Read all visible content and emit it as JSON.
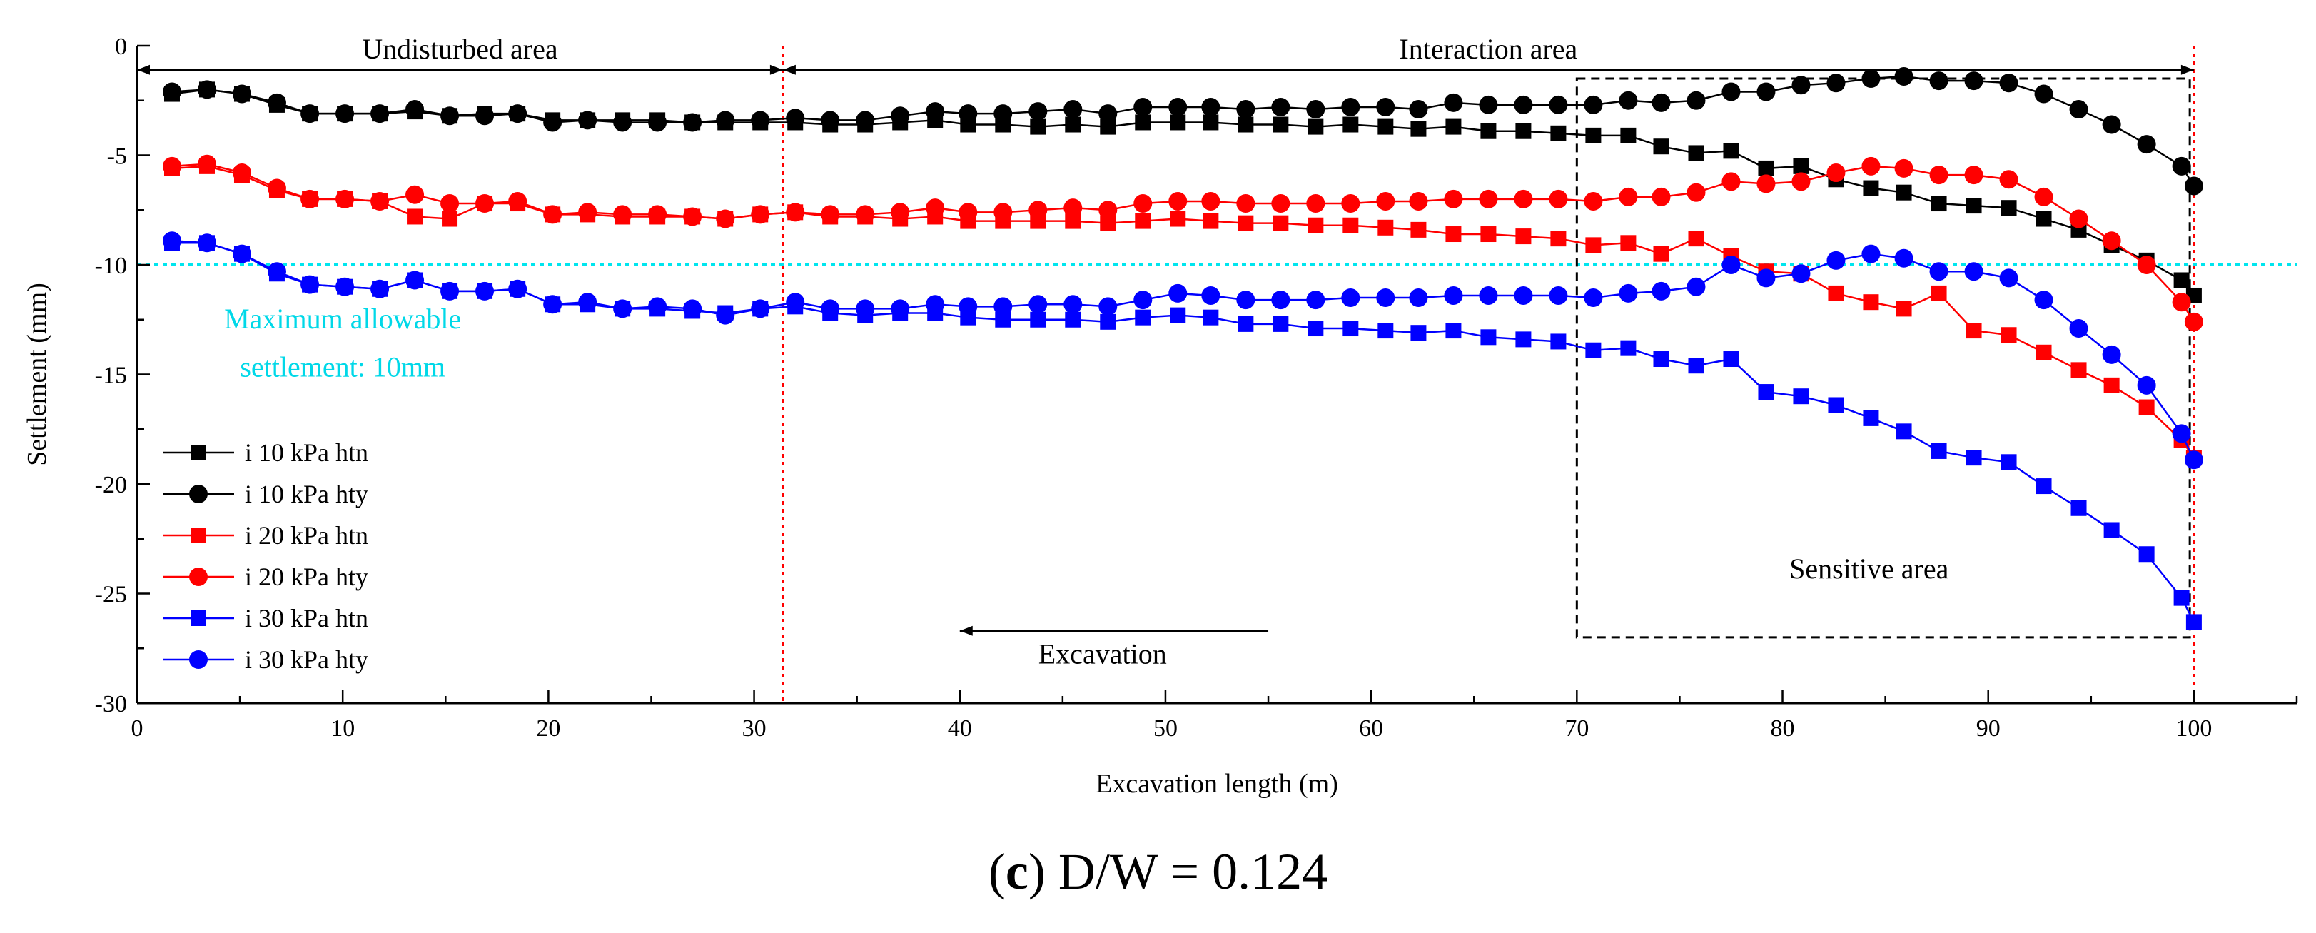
{
  "caption": {
    "open": "(",
    "letter": "c",
    "close": ")",
    "text": " D/W = 0.124"
  },
  "chart_data": {
    "type": "line",
    "xlabel": "Excavation length (m)",
    "ylabel": "Settlement  (mm)",
    "xlim": [
      0,
      105
    ],
    "ylim": [
      -30,
      0
    ],
    "xticks": [
      0,
      10,
      20,
      30,
      40,
      50,
      60,
      70,
      80,
      90,
      100
    ],
    "yticks": [
      0,
      -5,
      -10,
      -15,
      -20,
      -25,
      -30
    ],
    "grid": false,
    "legend_position": "lower-left",
    "threshold": {
      "y": -10,
      "color": "#00e5ee",
      "label_line1": "Maximum allowable",
      "label_line2": "settlement: 10mm"
    },
    "vlines": [
      {
        "x": 31.4,
        "color": "#ff0000"
      },
      {
        "x": 100,
        "color": "#ff0000"
      }
    ],
    "annotations": {
      "undisturbed": {
        "label": "Undisturbed area",
        "x_from": 0,
        "x_to": 31.4,
        "y": -1.1
      },
      "interaction": {
        "label": "Interaction area",
        "x_from": 31.4,
        "x_to": 100,
        "y": -1.1
      },
      "sensitive": {
        "label": "Sensitive area",
        "x_from": 70,
        "x_to": 99.8,
        "y_from": -1.5,
        "y_to": -27
      },
      "excavation": {
        "label": "Excavation",
        "x_from": 55,
        "x_to": 40,
        "y": -26.7
      }
    },
    "x": [
      1.7,
      3.4,
      5.1,
      6.8,
      8.4,
      10.1,
      11.8,
      13.5,
      15.2,
      16.9,
      18.5,
      20.2,
      21.9,
      23.6,
      25.3,
      27.0,
      28.6,
      30.3,
      32.0,
      33.7,
      35.4,
      37.1,
      38.8,
      40.4,
      42.1,
      43.8,
      45.5,
      47.2,
      48.9,
      50.6,
      52.2,
      53.9,
      55.6,
      57.3,
      59.0,
      60.7,
      62.3,
      64.0,
      65.7,
      67.4,
      69.1,
      70.8,
      72.5,
      74.1,
      75.8,
      77.5,
      79.2,
      80.9,
      82.6,
      84.3,
      85.9,
      87.6,
      89.3,
      91.0,
      92.7,
      94.4,
      96.0,
      97.7,
      99.4,
      100.0
    ],
    "series": [
      {
        "name": "i 10 kPa htn",
        "color": "#000000",
        "marker": "square",
        "values": [
          -2.2,
          -2.0,
          -2.2,
          -2.7,
          -3.1,
          -3.1,
          -3.1,
          -3.0,
          -3.2,
          -3.1,
          -3.1,
          -3.4,
          -3.4,
          -3.4,
          -3.4,
          -3.5,
          -3.5,
          -3.5,
          -3.5,
          -3.6,
          -3.6,
          -3.5,
          -3.4,
          -3.6,
          -3.6,
          -3.7,
          -3.6,
          -3.7,
          -3.5,
          -3.5,
          -3.5,
          -3.6,
          -3.6,
          -3.7,
          -3.6,
          -3.7,
          -3.8,
          -3.7,
          -3.9,
          -3.9,
          -4.0,
          -4.1,
          -4.1,
          -4.6,
          -4.9,
          -4.8,
          -5.6,
          -5.5,
          -6.1,
          -6.5,
          -6.7,
          -7.2,
          -7.3,
          -7.4,
          -7.9,
          -8.4,
          -9.1,
          -9.8,
          -10.7,
          -11.4
        ]
      },
      {
        "name": "i 10 kPa hty",
        "color": "#000000",
        "marker": "circle",
        "values": [
          -2.1,
          -2.0,
          -2.2,
          -2.6,
          -3.1,
          -3.1,
          -3.1,
          -2.9,
          -3.2,
          -3.2,
          -3.1,
          -3.5,
          -3.4,
          -3.5,
          -3.5,
          -3.5,
          -3.4,
          -3.4,
          -3.3,
          -3.4,
          -3.4,
          -3.2,
          -3.0,
          -3.1,
          -3.1,
          -3.0,
          -2.9,
          -3.1,
          -2.8,
          -2.8,
          -2.8,
          -2.9,
          -2.8,
          -2.9,
          -2.8,
          -2.8,
          -2.9,
          -2.6,
          -2.7,
          -2.7,
          -2.7,
          -2.7,
          -2.5,
          -2.6,
          -2.5,
          -2.1,
          -2.1,
          -1.8,
          -1.7,
          -1.5,
          -1.4,
          -1.6,
          -1.6,
          -1.7,
          -2.2,
          -2.9,
          -3.6,
          -4.5,
          -5.5,
          -6.4
        ]
      },
      {
        "name": "i 20 kPa htn",
        "color": "#ff0000",
        "marker": "square",
        "values": [
          -5.6,
          -5.5,
          -5.9,
          -6.6,
          -7.0,
          -7.0,
          -7.1,
          -7.8,
          -7.9,
          -7.2,
          -7.2,
          -7.7,
          -7.7,
          -7.8,
          -7.8,
          -7.8,
          -7.9,
          -7.7,
          -7.6,
          -7.8,
          -7.8,
          -7.9,
          -7.8,
          -8.0,
          -8.0,
          -8.0,
          -8.0,
          -8.1,
          -8.0,
          -7.9,
          -8.0,
          -8.1,
          -8.1,
          -8.2,
          -8.2,
          -8.3,
          -8.4,
          -8.6,
          -8.6,
          -8.7,
          -8.8,
          -9.1,
          -9.0,
          -9.5,
          -8.8,
          -9.6,
          -10.3,
          -10.4,
          -11.3,
          -11.7,
          -12.0,
          -11.3,
          -13.0,
          -13.2,
          -14.0,
          -14.8,
          -15.5,
          -16.5,
          -18.0,
          -18.8
        ]
      },
      {
        "name": "i 20 kPa hty",
        "color": "#ff0000",
        "marker": "circle",
        "values": [
          -5.5,
          -5.4,
          -5.8,
          -6.5,
          -7.0,
          -7.0,
          -7.1,
          -6.8,
          -7.2,
          -7.2,
          -7.1,
          -7.7,
          -7.6,
          -7.7,
          -7.7,
          -7.8,
          -7.9,
          -7.7,
          -7.6,
          -7.7,
          -7.7,
          -7.6,
          -7.4,
          -7.6,
          -7.6,
          -7.5,
          -7.4,
          -7.5,
          -7.2,
          -7.1,
          -7.1,
          -7.2,
          -7.2,
          -7.2,
          -7.2,
          -7.1,
          -7.1,
          -7.0,
          -7.0,
          -7.0,
          -7.0,
          -7.1,
          -6.9,
          -6.9,
          -6.7,
          -6.2,
          -6.3,
          -6.2,
          -5.8,
          -5.5,
          -5.6,
          -5.9,
          -5.9,
          -6.1,
          -6.9,
          -7.9,
          -8.9,
          -10.0,
          -11.7,
          -12.6
        ]
      },
      {
        "name": "i 30 kPa htn",
        "color": "#0000ff",
        "marker": "square",
        "values": [
          -9.0,
          -9.0,
          -9.5,
          -10.4,
          -10.9,
          -11.0,
          -11.1,
          -10.7,
          -11.2,
          -11.2,
          -11.1,
          -11.8,
          -11.8,
          -12.0,
          -12.0,
          -12.1,
          -12.2,
          -12.0,
          -11.9,
          -12.2,
          -12.3,
          -12.2,
          -12.2,
          -12.4,
          -12.5,
          -12.5,
          -12.5,
          -12.6,
          -12.4,
          -12.3,
          -12.4,
          -12.7,
          -12.7,
          -12.9,
          -12.9,
          -13.0,
          -13.1,
          -13.0,
          -13.3,
          -13.4,
          -13.5,
          -13.9,
          -13.8,
          -14.3,
          -14.6,
          -14.3,
          -15.8,
          -16.0,
          -16.4,
          -17.0,
          -17.6,
          -18.5,
          -18.8,
          -19.0,
          -20.1,
          -21.1,
          -22.1,
          -23.2,
          -25.2,
          -26.3
        ]
      },
      {
        "name": "i 30 kPa hty",
        "color": "#0000ff",
        "marker": "circle",
        "values": [
          -8.9,
          -9.0,
          -9.5,
          -10.3,
          -10.9,
          -11.0,
          -11.1,
          -10.7,
          -11.2,
          -11.2,
          -11.1,
          -11.8,
          -11.7,
          -12.0,
          -11.9,
          -12.0,
          -12.3,
          -12.0,
          -11.7,
          -12.0,
          -12.0,
          -12.0,
          -11.8,
          -11.9,
          -11.9,
          -11.8,
          -11.8,
          -11.9,
          -11.6,
          -11.3,
          -11.4,
          -11.6,
          -11.6,
          -11.6,
          -11.5,
          -11.5,
          -11.5,
          -11.4,
          -11.4,
          -11.4,
          -11.4,
          -11.5,
          -11.3,
          -11.2,
          -11.0,
          -10.0,
          -10.6,
          -10.4,
          -9.8,
          -9.5,
          -9.7,
          -10.3,
          -10.3,
          -10.6,
          -11.6,
          -12.9,
          -14.1,
          -15.5,
          -17.7,
          -18.9
        ]
      }
    ]
  }
}
